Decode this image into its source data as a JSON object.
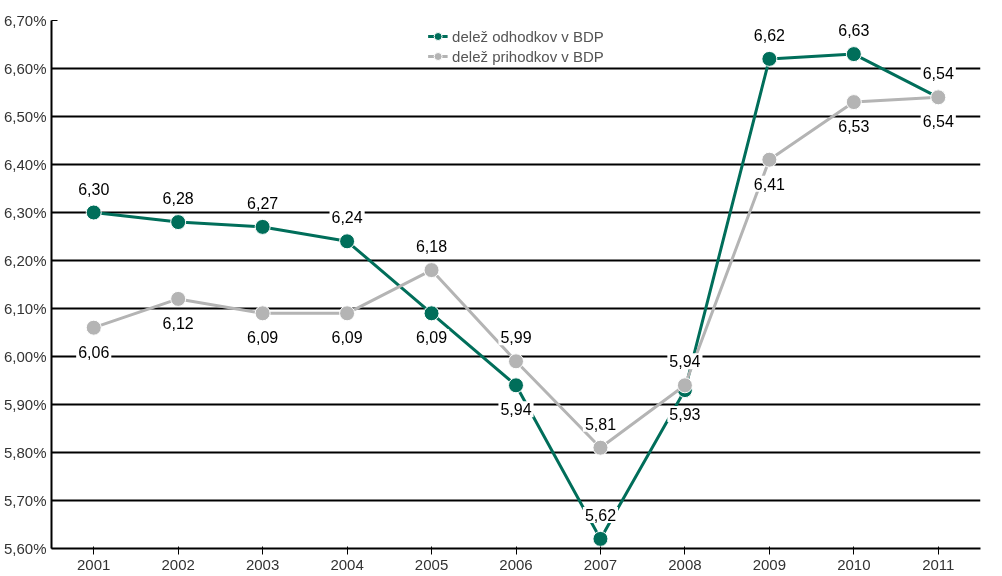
{
  "chart_data": {
    "type": "line",
    "categories": [
      "2001",
      "2002",
      "2003",
      "2004",
      "2005",
      "2006",
      "2007",
      "2008",
      "2009",
      "2010",
      "2011"
    ],
    "series": [
      {
        "name": "delež odhodkov v BDP",
        "color": "#006e5a",
        "values": [
          6.3,
          6.28,
          6.27,
          6.24,
          6.09,
          5.94,
          5.62,
          5.93,
          6.62,
          6.63,
          6.54
        ],
        "value_labels": [
          "6,30",
          "6,28",
          "6,27",
          "6,24",
          "6,09",
          "5,94",
          "5,62",
          "5,93",
          "6,62",
          "6,63",
          "6,54"
        ]
      },
      {
        "name": "delež prihodkov v BDP",
        "color": "#b4b4b4",
        "values": [
          6.06,
          6.12,
          6.09,
          6.09,
          6.18,
          5.99,
          5.81,
          5.94,
          6.41,
          6.53,
          6.54
        ],
        "value_labels": [
          "6,06",
          "6,12",
          "6,09",
          "6,09",
          "6,18",
          "5,99",
          "5,81",
          "5,94",
          "6,41",
          "6,53",
          "6,54"
        ]
      }
    ],
    "ylim": [
      5.6,
      6.7
    ],
    "yticks": [
      {
        "value": 5.6,
        "label": "5,60%"
      },
      {
        "value": 5.7,
        "label": "5,70%"
      },
      {
        "value": 5.8,
        "label": "5,80%"
      },
      {
        "value": 5.9,
        "label": "5,90%"
      },
      {
        "value": 6.0,
        "label": "6,00%"
      },
      {
        "value": 6.1,
        "label": "6,10%"
      },
      {
        "value": 6.2,
        "label": "6,20%"
      },
      {
        "value": 6.3,
        "label": "6,30%"
      },
      {
        "value": 6.4,
        "label": "6,40%"
      },
      {
        "value": 6.5,
        "label": "6,50%"
      },
      {
        "value": 6.6,
        "label": "6,60%"
      },
      {
        "value": 6.7,
        "label": "6,70%"
      }
    ],
    "grid": "y",
    "legend": "top",
    "marker": "circle",
    "line_style": "solid"
  }
}
